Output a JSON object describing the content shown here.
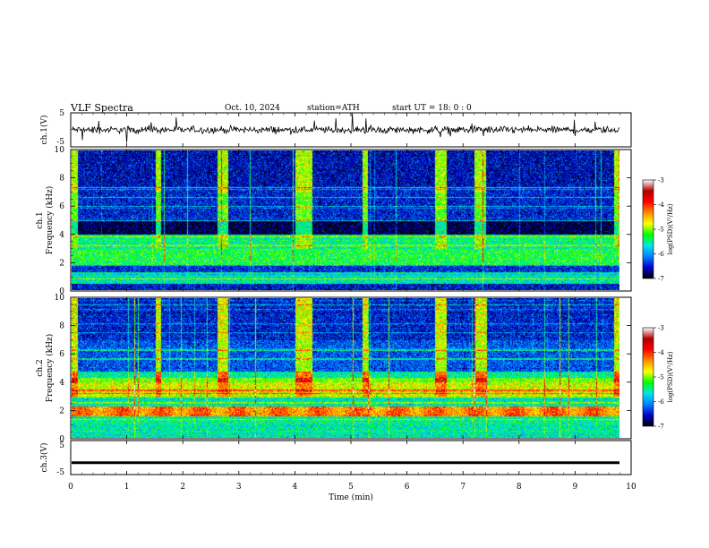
{
  "header": {
    "title": "VLF  Spectra",
    "date": "Oct. 10, 2024",
    "station": "station=ATH",
    "start_ut": "start  UT  =    18: 0  : 0"
  },
  "colors": {
    "background": "#ffffff",
    "axis": "#000000",
    "waveform": "#000000",
    "colormap": [
      "#ffffff",
      "#b00000",
      "#ff0000",
      "#ff8c00",
      "#ffff00",
      "#00ff00",
      "#00e5e5",
      "#0080ff",
      "#0000c8",
      "#000000"
    ]
  },
  "chart_data": [
    {
      "type": "line",
      "panel": "ch1-waveform",
      "ylabel": "ch.1(V)",
      "ylim": [
        -5,
        5
      ],
      "yticks": [
        "5",
        "-5"
      ],
      "xlim": [
        0,
        10
      ],
      "series": [
        {
          "baseline": 0,
          "amplitude_approx": 1
        }
      ]
    },
    {
      "type": "heatmap",
      "panel": "ch1-spectrogram",
      "ylabel": "ch.1\nFrequency (kHz)",
      "ylim": [
        0,
        10
      ],
      "yticks": [
        "0",
        "2",
        "4",
        "6",
        "8",
        "10"
      ],
      "xlim": [
        0,
        9.8
      ],
      "colorbar": {
        "label": "log(PSD)(V²/Hz)",
        "range": [
          -7,
          -3
        ],
        "ticks": [
          "-3",
          "-4",
          "-5",
          "-6",
          "-7"
        ]
      },
      "quiet_intervals_min": [
        [
          0.1,
          1.5
        ],
        [
          1.6,
          2.6
        ],
        [
          2.8,
          4.0
        ],
        [
          4.3,
          5.2
        ],
        [
          5.3,
          6.5
        ],
        [
          6.7,
          7.2
        ],
        [
          7.4,
          9.7
        ]
      ],
      "band_levels": [
        {
          "fmin": 0.0,
          "fmax": 0.5,
          "log_psd": -6.5
        },
        {
          "fmin": 0.5,
          "fmax": 1.3,
          "log_psd": -5.6
        },
        {
          "fmin": 1.3,
          "fmax": 1.8,
          "log_psd": -6.4
        },
        {
          "fmin": 1.8,
          "fmax": 3.0,
          "log_psd": -5.3
        },
        {
          "fmin": 3.0,
          "fmax": 4.0,
          "log_psd": -5.5
        },
        {
          "fmin": 4.0,
          "fmax": 5.0,
          "log_psd": -6.6
        },
        {
          "fmin": 5.0,
          "fmax": 7.5,
          "log_psd": -6.2
        },
        {
          "fmin": 7.5,
          "fmax": 10.0,
          "log_psd": -6.3
        }
      ]
    },
    {
      "type": "heatmap",
      "panel": "ch2-spectrogram",
      "ylabel": "ch.2\nFrequency (kHz)",
      "ylim": [
        0,
        10
      ],
      "yticks": [
        "0",
        "2",
        "4",
        "6",
        "8",
        "10"
      ],
      "xlim": [
        0,
        9.8
      ],
      "colorbar": {
        "label": "log(PSD)(V²/Hz)",
        "range": [
          -7,
          -3
        ],
        "ticks": [
          "-3",
          "-4",
          "-5",
          "-6",
          "-7"
        ]
      },
      "quiet_intervals_min": [
        [
          0.1,
          1.5
        ],
        [
          1.6,
          2.6
        ],
        [
          2.8,
          4.0
        ],
        [
          4.3,
          5.2
        ],
        [
          5.3,
          6.5
        ],
        [
          6.7,
          7.2
        ],
        [
          7.4,
          9.7
        ]
      ],
      "band_levels": [
        {
          "fmin": 0.0,
          "fmax": 1.0,
          "log_psd": -5.6
        },
        {
          "fmin": 1.0,
          "fmax": 1.6,
          "log_psd": -5.5
        },
        {
          "fmin": 1.6,
          "fmax": 2.3,
          "log_psd": -4.3
        },
        {
          "fmin": 2.3,
          "fmax": 3.0,
          "log_psd": -5.6
        },
        {
          "fmin": 3.0,
          "fmax": 4.3,
          "log_psd": -4.8
        },
        {
          "fmin": 4.3,
          "fmax": 4.8,
          "log_psd": -5.3
        },
        {
          "fmin": 4.8,
          "fmax": 7.0,
          "log_psd": -6.0
        },
        {
          "fmin": 7.0,
          "fmax": 10.0,
          "log_psd": -6.2
        }
      ]
    },
    {
      "type": "line",
      "panel": "ch3-waveform",
      "ylabel": "ch.3(V)",
      "ylim": [
        -5,
        5
      ],
      "yticks": [
        "5",
        "-5"
      ],
      "xlim": [
        0,
        10
      ],
      "series": [
        {
          "baseline": -1.5
        }
      ]
    }
  ],
  "xaxis": {
    "label": "Time  (min)",
    "ticks": [
      "0",
      "1",
      "2",
      "3",
      "4",
      "5",
      "6",
      "7",
      "8",
      "9",
      "10"
    ]
  }
}
